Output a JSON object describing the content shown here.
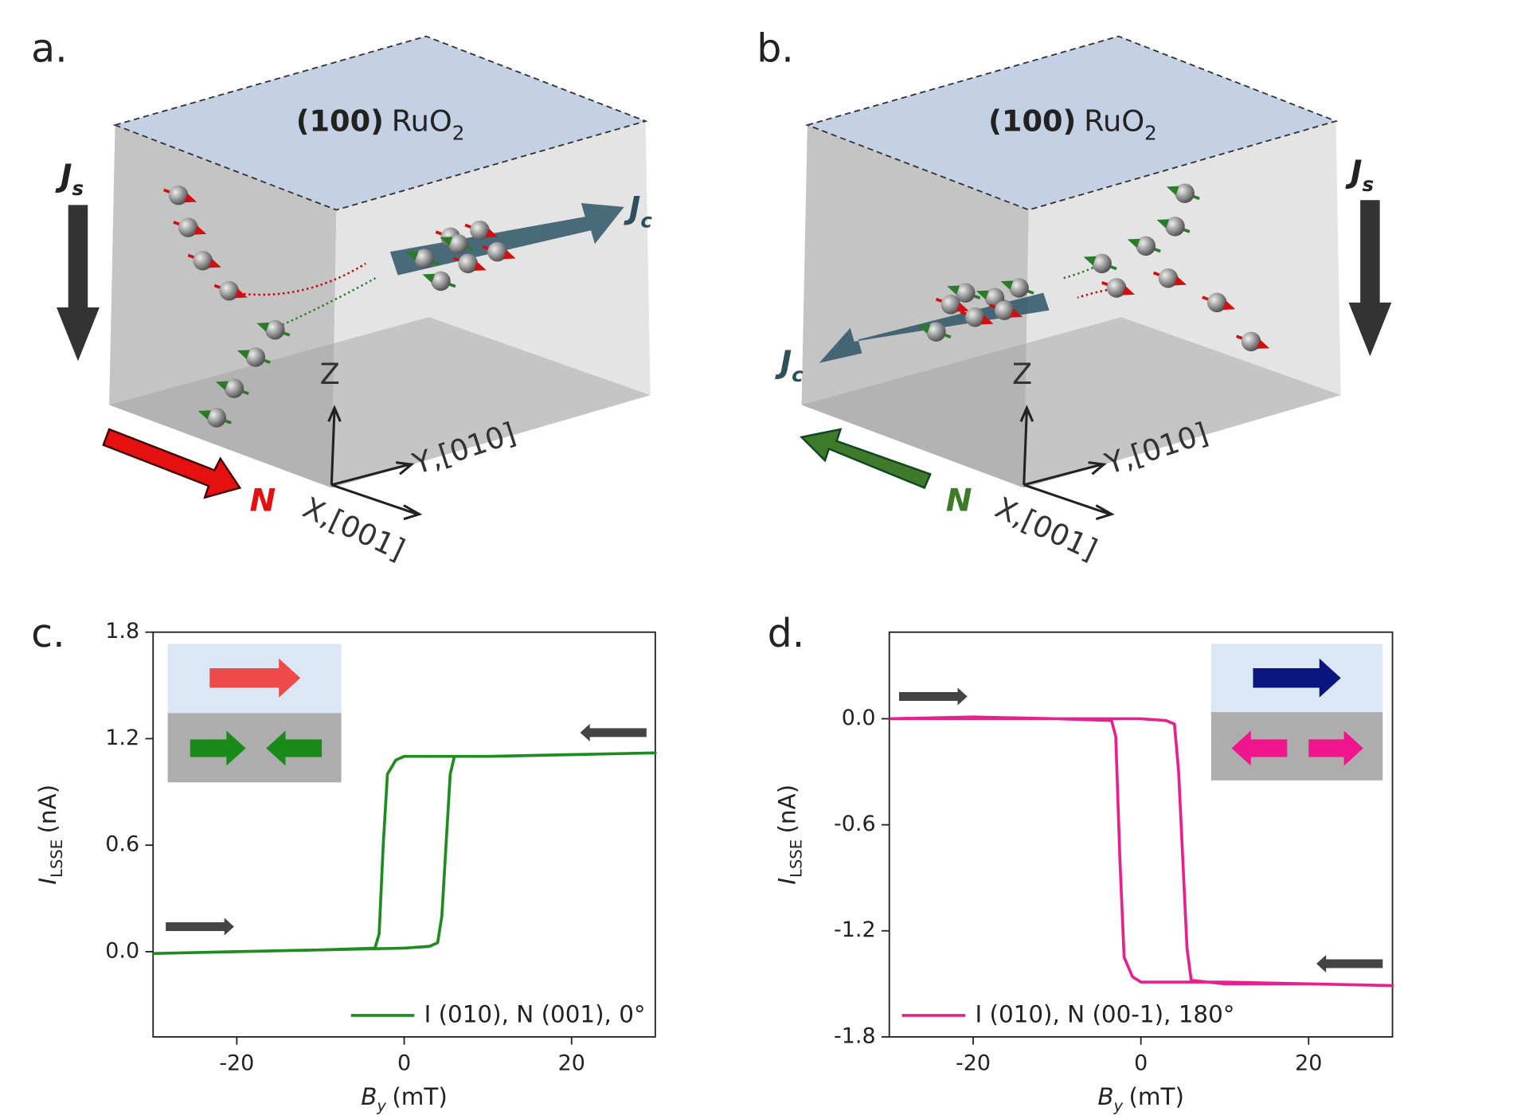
{
  "panels": [
    {
      "label": "a.",
      "film": {
        "index": "(100)",
        "formula": "RuO",
        "subscript": "2"
      },
      "spin_current": {
        "symbol": "J",
        "subscript": "s"
      },
      "charge_current": {
        "symbol": "J",
        "subscript": "c"
      },
      "neel": "N",
      "axes": {
        "z": "Z",
        "y": "Y,[010]",
        "x": "X,[001]"
      }
    },
    {
      "label": "b.",
      "film": {
        "index": "(100)",
        "formula": "RuO",
        "subscript": "2"
      },
      "spin_current": {
        "symbol": "J",
        "subscript": "s"
      },
      "charge_current": {
        "symbol": "J",
        "subscript": "c"
      },
      "neel": "N",
      "axes": {
        "z": "Z",
        "y": "Y,[010]",
        "x": "X,[001]"
      }
    }
  ],
  "chart_data": [
    {
      "type": "line",
      "panel_label": "c.",
      "x_label": {
        "symbol": "B",
        "subscript": "y",
        "unit": "(mT)"
      },
      "y_label": {
        "symbol": "I",
        "subscript": "LSSE",
        "unit": "(nA)"
      },
      "xlim": [
        -30,
        30
      ],
      "xticks": [
        -20,
        0,
        20
      ],
      "ylim": [
        -0.48,
        1.8
      ],
      "yticks": [
        {
          "value": 0,
          "label": "0.0"
        },
        0.6,
        1.2,
        1.8
      ],
      "legend": "lower right",
      "series": [
        {
          "name": "I (010), N (001), 0°",
          "color": "#1e8c1e",
          "x": [
            -30,
            -20,
            -10,
            0,
            3,
            4,
            4.5,
            5,
            5.5,
            6,
            10,
            20,
            30,
            20,
            10,
            0,
            -1,
            -2,
            -2.5,
            -3,
            -3.5,
            -10,
            -20,
            -30
          ],
          "values": [
            -0.01,
            0.0,
            0.01,
            0.02,
            0.03,
            0.05,
            0.2,
            0.6,
            1.0,
            1.1,
            1.1,
            1.11,
            1.12,
            1.11,
            1.1,
            1.1,
            1.08,
            1.0,
            0.6,
            0.1,
            0.02,
            0.01,
            0.0,
            -0.01
          ]
        }
      ]
    },
    {
      "type": "line",
      "panel_label": "d.",
      "x_label": {
        "symbol": "B",
        "subscript": "y",
        "unit": "(mT)"
      },
      "y_label": {
        "symbol": "I",
        "subscript": "LSSE",
        "unit": "(nA)"
      },
      "xlim": [
        -30,
        30
      ],
      "xticks": [
        -20,
        0,
        20
      ],
      "ylim": [
        -1.8,
        0.49
      ],
      "yticks": [
        {
          "value": 0,
          "label": "0.0"
        },
        -0.6,
        -1.2,
        -1.8
      ],
      "legend": "lower left",
      "series": [
        {
          "name": "I (010), N (00-1), 180°",
          "color": "#e8208e",
          "x": [
            -30,
            -20,
            -10,
            0,
            3,
            4,
            4.5,
            5,
            5.5,
            6,
            10,
            20,
            30,
            20,
            10,
            0,
            -1,
            -2,
            -2.5,
            -3,
            -3.5,
            -10,
            -20,
            -30
          ],
          "values": [
            0.0,
            0.0,
            0.0,
            0.0,
            -0.01,
            -0.03,
            -0.3,
            -0.8,
            -1.3,
            -1.48,
            -1.5,
            -1.5,
            -1.51,
            -1.5,
            -1.49,
            -1.49,
            -1.46,
            -1.35,
            -0.8,
            -0.1,
            -0.01,
            0.0,
            0.01,
            0.0
          ]
        }
      ]
    }
  ]
}
